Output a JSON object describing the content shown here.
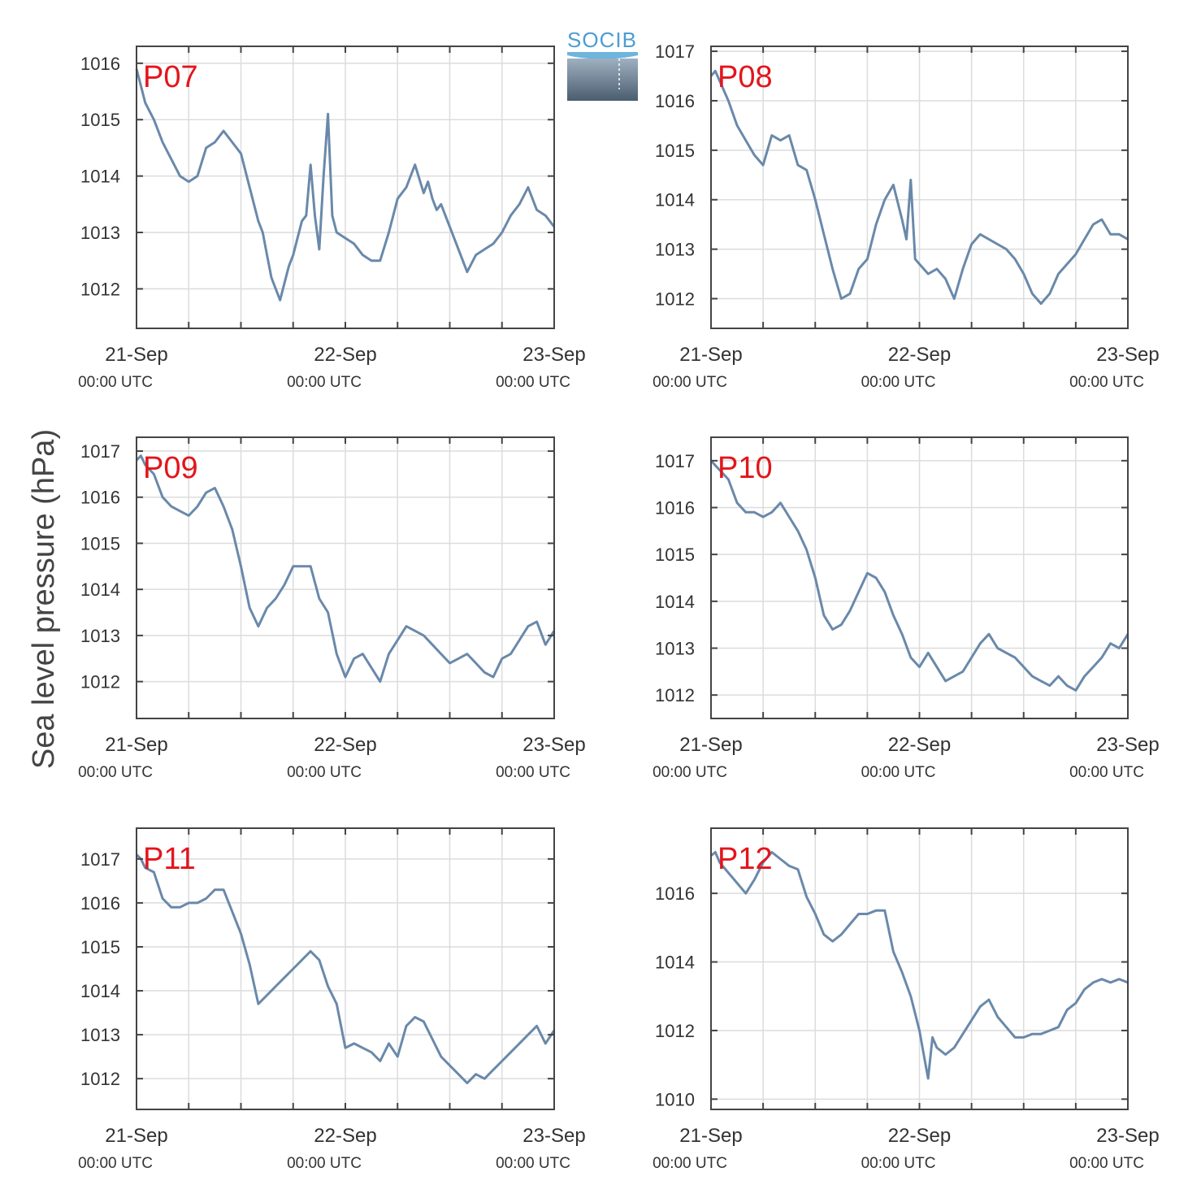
{
  "figure": {
    "ylabel": "Sea level pressure (hPa)",
    "logo_text": "SOCIB",
    "line_color": "#6a89aa",
    "label_color": "#e3151c"
  },
  "chart_data": [
    {
      "type": "line",
      "name": "P07",
      "xlim": [
        0,
        48
      ],
      "ylim": [
        1011.3,
        1016.3
      ],
      "yticks": [
        1012,
        1013,
        1014,
        1015,
        1016
      ],
      "xticks": [
        {
          "h": 0,
          "label": "21-Sep",
          "sub": "00:00 UTC"
        },
        {
          "h": 24,
          "label": "22-Sep",
          "sub": "00:00 UTC"
        },
        {
          "h": 48,
          "label": "23-Sep",
          "sub": "00:00 UTC"
        }
      ],
      "grid": true,
      "x": [
        0,
        0.5,
        1,
        2,
        3,
        4,
        5,
        6,
        7,
        8,
        9,
        10,
        11,
        12,
        13,
        14,
        14.5,
        15,
        15.5,
        16,
        16.5,
        17,
        17.5,
        18,
        18.5,
        19,
        19.5,
        20,
        20.5,
        21,
        21.5,
        22,
        22.5,
        23,
        24,
        25,
        26,
        27,
        28,
        29,
        30,
        31,
        32,
        33,
        33.5,
        34,
        34.5,
        35,
        35.5,
        36,
        37,
        38,
        39,
        40,
        41,
        42,
        43,
        44,
        45,
        46,
        47,
        48
      ],
      "y": [
        1015.9,
        1015.6,
        1015.3,
        1015.0,
        1014.6,
        1014.3,
        1014.0,
        1013.9,
        1014.0,
        1014.5,
        1014.6,
        1014.8,
        1014.6,
        1014.4,
        1013.8,
        1013.2,
        1013.0,
        1012.6,
        1012.2,
        1012.0,
        1011.8,
        1012.1,
        1012.4,
        1012.6,
        1012.9,
        1013.2,
        1013.3,
        1014.2,
        1013.3,
        1012.7,
        1014.0,
        1015.1,
        1013.3,
        1013.0,
        1012.9,
        1012.8,
        1012.6,
        1012.5,
        1012.5,
        1013.0,
        1013.6,
        1013.8,
        1014.2,
        1013.7,
        1013.9,
        1013.6,
        1013.4,
        1013.5,
        1013.3,
        1013.1,
        1012.7,
        1012.3,
        1012.6,
        1012.7,
        1012.8,
        1013.0,
        1013.3,
        1013.5,
        1013.8,
        1013.4,
        1013.3,
        1013.1
      ]
    },
    {
      "type": "line",
      "name": "P08",
      "xlim": [
        0,
        48
      ],
      "ylim": [
        1011.4,
        1017.1
      ],
      "yticks": [
        1012,
        1013,
        1014,
        1015,
        1016,
        1017
      ],
      "xticks": [
        {
          "h": 0,
          "label": "21-Sep",
          "sub": "00:00 UTC"
        },
        {
          "h": 24,
          "label": "22-Sep",
          "sub": "00:00 UTC"
        },
        {
          "h": 48,
          "label": "23-Sep",
          "sub": "00:00 UTC"
        }
      ],
      "grid": true,
      "x": [
        0,
        0.5,
        1,
        2,
        3,
        4,
        5,
        6,
        7,
        8,
        9,
        10,
        11,
        12,
        13,
        14,
        15,
        16,
        17,
        18,
        19,
        20,
        21,
        22,
        22.5,
        23,
        23.5,
        24,
        25,
        26,
        27,
        28,
        29,
        30,
        31,
        32,
        33,
        34,
        35,
        36,
        37,
        38,
        39,
        40,
        41,
        42,
        43,
        44,
        45,
        46,
        47,
        48
      ],
      "y": [
        1016.5,
        1016.6,
        1016.4,
        1016.0,
        1015.5,
        1015.2,
        1014.9,
        1014.7,
        1015.3,
        1015.2,
        1015.3,
        1014.7,
        1014.6,
        1014.0,
        1013.3,
        1012.6,
        1012.0,
        1012.1,
        1012.6,
        1012.8,
        1013.5,
        1014.0,
        1014.3,
        1013.6,
        1013.2,
        1014.4,
        1012.8,
        1012.7,
        1012.5,
        1012.6,
        1012.4,
        1012.0,
        1012.6,
        1013.1,
        1013.3,
        1013.2,
        1013.1,
        1013.0,
        1012.8,
        1012.5,
        1012.1,
        1011.9,
        1012.1,
        1012.5,
        1012.7,
        1012.9,
        1013.2,
        1013.5,
        1013.6,
        1013.3,
        1013.3,
        1013.2
      ]
    },
    {
      "type": "line",
      "name": "P09",
      "xlim": [
        0,
        48
      ],
      "ylim": [
        1011.2,
        1017.3
      ],
      "yticks": [
        1012,
        1013,
        1014,
        1015,
        1016,
        1017
      ],
      "xticks": [
        {
          "h": 0,
          "label": "21-Sep",
          "sub": "00:00 UTC"
        },
        {
          "h": 24,
          "label": "22-Sep",
          "sub": "00:00 UTC"
        },
        {
          "h": 48,
          "label": "23-Sep",
          "sub": "00:00 UTC"
        }
      ],
      "grid": true,
      "x": [
        0,
        0.5,
        1,
        2,
        3,
        4,
        5,
        6,
        7,
        8,
        9,
        10,
        11,
        12,
        13,
        14,
        15,
        16,
        17,
        18,
        19,
        20,
        21,
        22,
        23,
        24,
        25,
        26,
        27,
        28,
        29,
        30,
        31,
        32,
        33,
        34,
        35,
        36,
        37,
        38,
        39,
        40,
        41,
        42,
        43,
        44,
        45,
        46,
        47,
        48
      ],
      "y": [
        1016.8,
        1016.9,
        1016.7,
        1016.5,
        1016.0,
        1015.8,
        1015.7,
        1015.6,
        1015.8,
        1016.1,
        1016.2,
        1015.8,
        1015.3,
        1014.5,
        1013.6,
        1013.2,
        1013.6,
        1013.8,
        1014.1,
        1014.5,
        1014.5,
        1014.5,
        1013.8,
        1013.5,
        1012.6,
        1012.1,
        1012.5,
        1012.6,
        1012.3,
        1012.0,
        1012.6,
        1012.9,
        1013.2,
        1013.1,
        1013.0,
        1012.8,
        1012.6,
        1012.4,
        1012.5,
        1012.6,
        1012.4,
        1012.2,
        1012.1,
        1012.5,
        1012.6,
        1012.9,
        1013.2,
        1013.3,
        1012.8,
        1013.1
      ]
    },
    {
      "type": "line",
      "name": "P10",
      "xlim": [
        0,
        48
      ],
      "ylim": [
        1011.5,
        1017.5
      ],
      "yticks": [
        1012,
        1013,
        1014,
        1015,
        1016,
        1017
      ],
      "xticks": [
        {
          "h": 0,
          "label": "21-Sep",
          "sub": "00:00 UTC"
        },
        {
          "h": 24,
          "label": "22-Sep",
          "sub": "00:00 UTC"
        },
        {
          "h": 48,
          "label": "23-Sep",
          "sub": "00:00 UTC"
        }
      ],
      "grid": true,
      "x": [
        0,
        0.5,
        1,
        2,
        3,
        4,
        5,
        6,
        7,
        8,
        9,
        10,
        11,
        12,
        13,
        14,
        15,
        16,
        17,
        18,
        19,
        20,
        21,
        22,
        23,
        24,
        25,
        26,
        27,
        28,
        29,
        30,
        31,
        32,
        33,
        34,
        35,
        36,
        37,
        38,
        39,
        40,
        41,
        42,
        43,
        44,
        45,
        46,
        47,
        48
      ],
      "y": [
        1017.0,
        1016.9,
        1016.8,
        1016.6,
        1016.1,
        1015.9,
        1015.9,
        1015.8,
        1015.9,
        1016.1,
        1015.8,
        1015.5,
        1015.1,
        1014.5,
        1013.7,
        1013.4,
        1013.5,
        1013.8,
        1014.2,
        1014.6,
        1014.5,
        1014.2,
        1013.7,
        1013.3,
        1012.8,
        1012.6,
        1012.9,
        1012.6,
        1012.3,
        1012.4,
        1012.5,
        1012.8,
        1013.1,
        1013.3,
        1013.0,
        1012.9,
        1012.8,
        1012.6,
        1012.4,
        1012.3,
        1012.2,
        1012.4,
        1012.2,
        1012.1,
        1012.4,
        1012.6,
        1012.8,
        1013.1,
        1013.0,
        1013.3
      ]
    },
    {
      "type": "line",
      "name": "P11",
      "xlim": [
        0,
        48
      ],
      "ylim": [
        1011.3,
        1017.7
      ],
      "yticks": [
        1012,
        1013,
        1014,
        1015,
        1016,
        1017
      ],
      "xticks": [
        {
          "h": 0,
          "label": "21-Sep",
          "sub": "00:00 UTC"
        },
        {
          "h": 24,
          "label": "22-Sep",
          "sub": "00:00 UTC"
        },
        {
          "h": 48,
          "label": "23-Sep",
          "sub": "00:00 UTC"
        }
      ],
      "grid": true,
      "x": [
        0,
        0.5,
        1,
        2,
        3,
        4,
        5,
        6,
        7,
        8,
        9,
        10,
        11,
        12,
        13,
        14,
        15,
        16,
        17,
        18,
        19,
        20,
        21,
        22,
        23,
        24,
        25,
        26,
        27,
        28,
        29,
        30,
        31,
        32,
        33,
        34,
        35,
        36,
        37,
        38,
        39,
        40,
        41,
        42,
        43,
        44,
        45,
        46,
        47,
        48
      ],
      "y": [
        1017.1,
        1017.0,
        1016.8,
        1016.7,
        1016.1,
        1015.9,
        1015.9,
        1016.0,
        1016.0,
        1016.1,
        1016.3,
        1016.3,
        1015.8,
        1015.3,
        1014.6,
        1013.7,
        1013.9,
        1014.1,
        1014.3,
        1014.5,
        1014.7,
        1014.9,
        1014.7,
        1014.1,
        1013.7,
        1012.7,
        1012.8,
        1012.7,
        1012.6,
        1012.4,
        1012.8,
        1012.5,
        1013.2,
        1013.4,
        1013.3,
        1012.9,
        1012.5,
        1012.3,
        1012.1,
        1011.9,
        1012.1,
        1012.0,
        1012.2,
        1012.4,
        1012.6,
        1012.8,
        1013.0,
        1013.2,
        1012.8,
        1013.1
      ]
    },
    {
      "type": "line",
      "name": "P12",
      "xlim": [
        0,
        48
      ],
      "ylim": [
        1009.7,
        1017.9
      ],
      "yticks": [
        1010,
        1012,
        1014,
        1016
      ],
      "xticks": [
        {
          "h": 0,
          "label": "21-Sep",
          "sub": "00:00 UTC"
        },
        {
          "h": 24,
          "label": "22-Sep",
          "sub": "00:00 UTC"
        },
        {
          "h": 48,
          "label": "23-Sep",
          "sub": "00:00 UTC"
        }
      ],
      "grid": true,
      "x": [
        0,
        0.5,
        1,
        2,
        3,
        4,
        5,
        6,
        7,
        8,
        9,
        10,
        11,
        12,
        13,
        14,
        15,
        16,
        17,
        18,
        19,
        20,
        21,
        22,
        23,
        24,
        24.5,
        25,
        25.5,
        26,
        27,
        28,
        29,
        30,
        31,
        32,
        33,
        34,
        35,
        36,
        37,
        38,
        39,
        40,
        41,
        42,
        43,
        44,
        45,
        46,
        47,
        48
      ],
      "y": [
        1017.1,
        1017.2,
        1016.9,
        1016.6,
        1016.3,
        1016.0,
        1016.4,
        1016.9,
        1017.2,
        1017.0,
        1016.8,
        1016.7,
        1015.9,
        1015.4,
        1014.8,
        1014.6,
        1014.8,
        1015.1,
        1015.4,
        1015.4,
        1015.5,
        1015.5,
        1014.3,
        1013.7,
        1013.0,
        1012.0,
        1011.3,
        1010.6,
        1011.8,
        1011.5,
        1011.3,
        1011.5,
        1011.9,
        1012.3,
        1012.7,
        1012.9,
        1012.4,
        1012.1,
        1011.8,
        1011.8,
        1011.9,
        1011.9,
        1012.0,
        1012.1,
        1012.6,
        1012.8,
        1013.2,
        1013.4,
        1013.5,
        1013.4,
        1013.5,
        1013.4
      ]
    }
  ]
}
